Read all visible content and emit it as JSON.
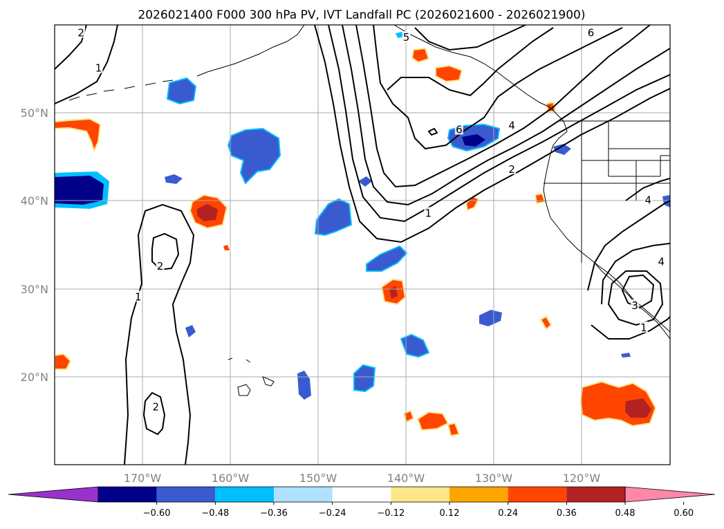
{
  "title": "2026021400 F000 300 hPa PV, IVT Landfall PC (2026021600 - 2026021900)",
  "map": {
    "lon_range": [
      -180,
      -110
    ],
    "lat_range": [
      10,
      60
    ],
    "lon_ticks": [
      {
        "value": -170,
        "label": "170°W"
      },
      {
        "value": -160,
        "label": "160°W"
      },
      {
        "value": -150,
        "label": "150°W"
      },
      {
        "value": -140,
        "label": "140°W"
      },
      {
        "value": -130,
        "label": "130°W"
      },
      {
        "value": -120,
        "label": "120°W"
      }
    ],
    "lat_ticks": [
      {
        "value": 50,
        "label": "50°N"
      },
      {
        "value": 40,
        "label": "40°N"
      },
      {
        "value": 30,
        "label": "30°N"
      },
      {
        "value": 20,
        "label": "20°N"
      }
    ],
    "gridlines": true,
    "coastline_color": "#000000"
  },
  "contour_labels": [
    {
      "text": "2",
      "lon": -177,
      "lat": 59
    },
    {
      "text": "1",
      "lon": -175,
      "lat": 55
    },
    {
      "text": "5",
      "lon": -140,
      "lat": 58.5
    },
    {
      "text": "6",
      "lon": -119,
      "lat": 59
    },
    {
      "text": "6",
      "lon": -134,
      "lat": 48
    },
    {
      "text": "4",
      "lon": -128,
      "lat": 48.5
    },
    {
      "text": "2",
      "lon": -128,
      "lat": 43.5
    },
    {
      "text": "1",
      "lon": -137.5,
      "lat": 38.5
    },
    {
      "text": "2",
      "lon": -168,
      "lat": 32.5
    },
    {
      "text": "1",
      "lon": -170.5,
      "lat": 29
    },
    {
      "text": "2",
      "lon": -168.5,
      "lat": 16.5
    },
    {
      "text": "3",
      "lon": -114,
      "lat": 28
    },
    {
      "text": "1",
      "lon": -113,
      "lat": 25.5
    },
    {
      "text": "4",
      "lon": -112.5,
      "lat": 40
    },
    {
      "text": "4",
      "lon": -111,
      "lat": 33
    }
  ],
  "colorbar": {
    "levels": [
      "−0.60",
      "−0.48",
      "−0.36",
      "−0.24",
      "−0.12",
      "0.12",
      "0.24",
      "0.36",
      "0.48",
      "0.60"
    ],
    "colors": [
      "#9932cc",
      "#00008b",
      "#3a5bd0",
      "#00bfff",
      "#b0e2ff",
      "#ffffff",
      "#fde68a",
      "#ffa500",
      "#ff4500",
      "#b22222",
      "#ff88aa"
    ],
    "extend": "both"
  },
  "pv_anomaly_colors": {
    "neg_strong": "#00008b",
    "neg_mid": "#3a5bd0",
    "neg_weak": "#00bfff",
    "pos_weak": "#fde68a",
    "pos_mid": "#ff4500",
    "pos_strong": "#b22222"
  }
}
